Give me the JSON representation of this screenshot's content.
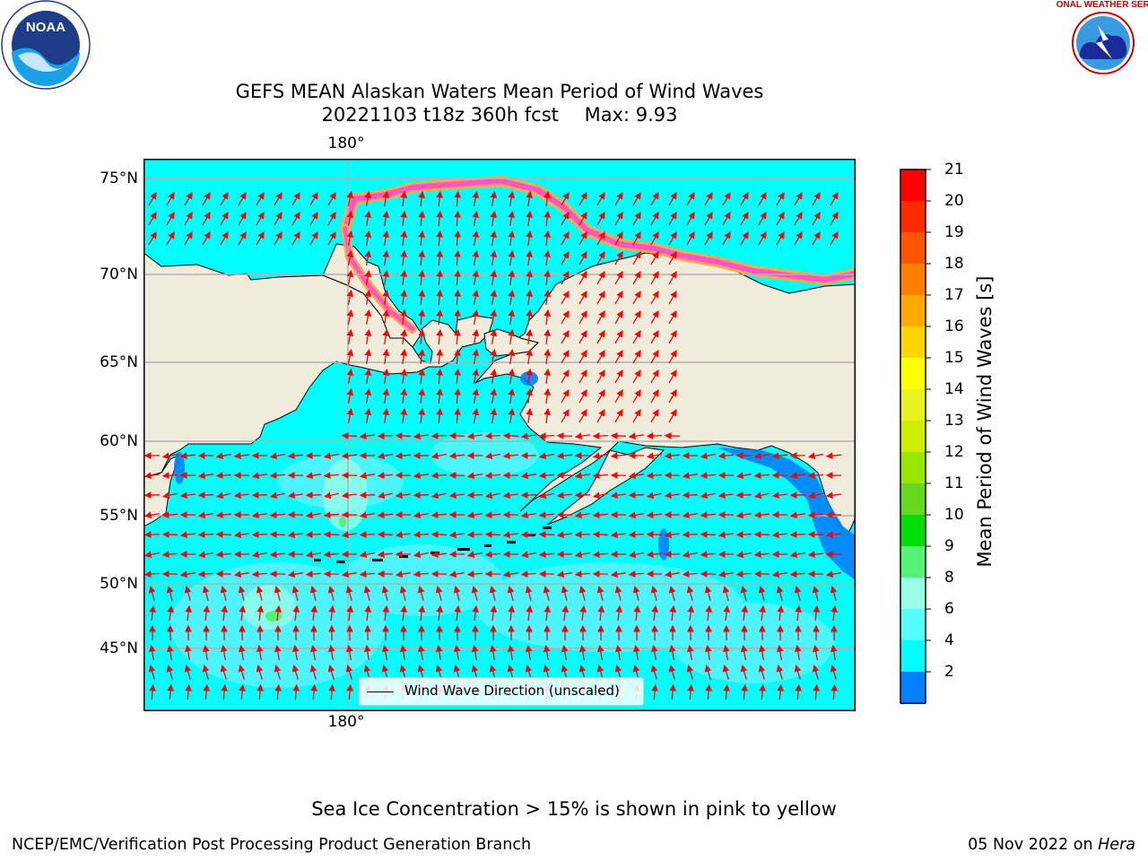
{
  "title_line1": "GEFS MEAN Alaskan Waters Mean Period of Wind Waves",
  "title_line2_run": "20221103 t18z 360h fcst",
  "title_line2_max": "Max: 9.93",
  "lon_label_top": "180°",
  "lon_label_bottom": "180°",
  "lat_labels": [
    "75°N",
    "70°N",
    "65°N",
    "60°N",
    "55°N",
    "50°N",
    "45°N"
  ],
  "legend_label": "Wind Wave Direction (unscaled)",
  "colorbar": {
    "label": "Mean Period of Wind Waves [s]",
    "ticks": [
      "21",
      "20",
      "19",
      "18",
      "17",
      "16",
      "15",
      "14",
      "13",
      "12",
      "11",
      "10",
      "9",
      "8",
      "6",
      "4",
      "2"
    ],
    "colors": [
      "#ff0000",
      "#ff2a00",
      "#ff5500",
      "#ff8000",
      "#ffaa00",
      "#ffd400",
      "#ffff00",
      "#e6f51f",
      "#ccf000",
      "#99e600",
      "#66d91f",
      "#00e000",
      "#55f27a",
      "#99ffe6",
      "#55ffff",
      "#00ffff",
      "#0080ff"
    ],
    "extend_color": "#0000ff"
  },
  "colors": {
    "land": "#efecdc",
    "ocean": "#00ffff",
    "ocean_light": "#55f5ff",
    "shallow": "#0080ff",
    "ice_pink": "#ff55cc",
    "ice_orange": "#ffaa44",
    "arrow": "#ff0000",
    "grid": "#b0b0b0"
  },
  "logos": {
    "noaa": "NOAA",
    "nws": "NATIONAL WEATHER SERVICE"
  },
  "note": "Sea Ice Concentration > 15% is shown in pink to yellow",
  "credit": "NCEP/EMC/Verification Post Processing Product Generation Branch",
  "date_text": "05 Nov 2022 on",
  "machine": "Hera"
}
